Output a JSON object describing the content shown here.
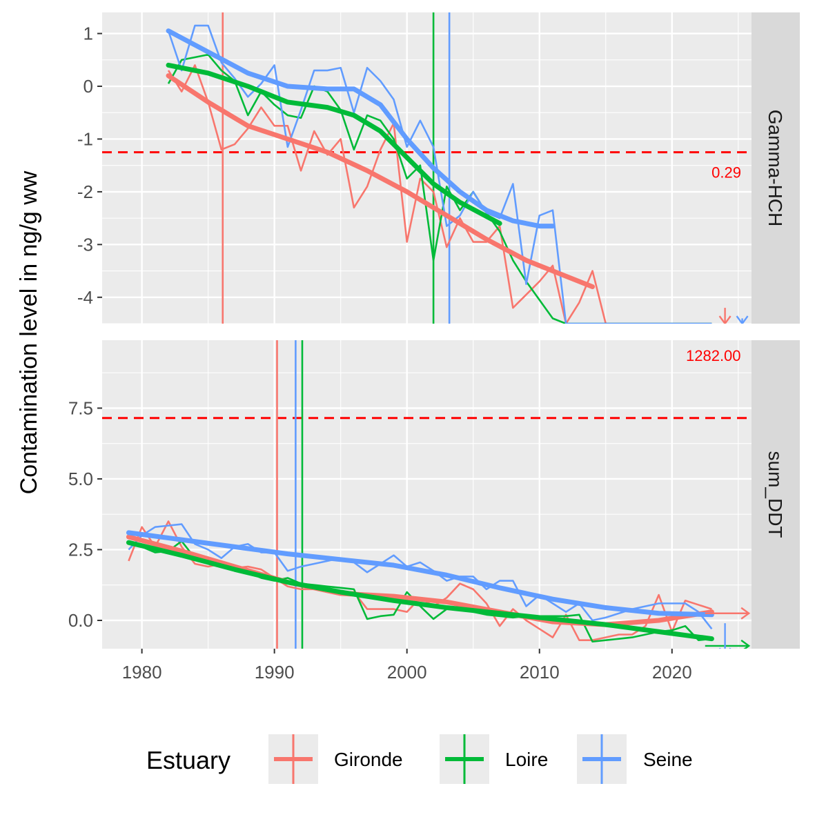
{
  "chart_data": {
    "type": "line",
    "ylabel": "Contamination level in ng/g ww",
    "xlabel": "",
    "xlim": [
      1977,
      2026
    ],
    "x_ticks": [
      1980,
      1990,
      2000,
      2010,
      2020
    ],
    "legend": {
      "title": "Estuary",
      "position": "bottom",
      "entries": [
        "Gironde",
        "Loire",
        "Seine"
      ]
    },
    "colors": {
      "Gironde": "#F8766D",
      "Loire": "#00BA38",
      "Seine": "#619CFF",
      "threshold": "#FF0000"
    },
    "panels": [
      {
        "strip": "Gamma-HCH",
        "ylim": [
          -4.5,
          1.4
        ],
        "y_ticks": [
          1,
          0,
          -1,
          -2,
          -3,
          -4
        ],
        "y_tick_labels": [
          "1",
          "0",
          "-1",
          "-2",
          "-3",
          "-4"
        ],
        "threshold": {
          "y": -1.25,
          "label": "0.29"
        },
        "vlines": {
          "Gironde": 1986.1,
          "Loire": 2002.0,
          "Seine": 2003.2
        },
        "series": [
          {
            "name": "Gironde",
            "x": [
              1982,
              1983,
              1984,
              1985,
              1986,
              1987,
              1988,
              1989,
              1990,
              1991,
              1992,
              1993,
              1994,
              1995,
              1996,
              1997,
              1998,
              1999,
              2000,
              2001,
              2002,
              2003,
              2004,
              2005,
              2006,
              2007,
              2008,
              2009,
              2010,
              2011,
              2012,
              2013,
              2014,
              2015,
              2016,
              2017,
              2018,
              2019,
              2020,
              2021,
              2022,
              2023
            ],
            "y": [
              0.3,
              -0.1,
              0.4,
              -0.3,
              -1.2,
              -1.1,
              -0.8,
              -0.4,
              -0.75,
              -0.75,
              -1.6,
              -0.85,
              -1.3,
              -1.0,
              -2.3,
              -1.9,
              -1.2,
              -0.7,
              -2.95,
              -1.75,
              -2.0,
              -3.05,
              -2.5,
              -2.95,
              -2.95,
              -2.65,
              -4.2,
              -3.95,
              -3.7,
              -3.4,
              -4.5,
              -4.1,
              -3.5,
              -4.5,
              -4.5,
              -4.5,
              -4.5,
              -4.5,
              -4.5,
              -4.5,
              -4.5,
              -4.5
            ],
            "smooth_x": [
              1982,
              1985,
              1988,
              1991,
              1994,
              1997,
              2000,
              2003,
              2006,
              2009,
              2012,
              2014
            ],
            "smooth_y": [
              0.2,
              -0.3,
              -0.75,
              -1.0,
              -1.25,
              -1.6,
              -2.0,
              -2.45,
              -2.9,
              -3.3,
              -3.6,
              -3.8
            ]
          },
          {
            "name": "Loire",
            "x": [
              1982,
              1983,
              1984,
              1985,
              1986,
              1987,
              1988,
              1989,
              1990,
              1991,
              1992,
              1993,
              1994,
              1995,
              1996,
              1997,
              1998,
              1999,
              2000,
              2001,
              2002,
              2003,
              2004,
              2005,
              2006,
              2007,
              2008,
              2009,
              2010,
              2011,
              2012,
              2013,
              2014,
              2015,
              2016,
              2017,
              2018,
              2019,
              2020,
              2021,
              2022,
              2023
            ],
            "y": [
              0.05,
              0.5,
              0.55,
              0.6,
              0.3,
              0.1,
              -0.55,
              -0.1,
              -0.35,
              -0.55,
              -0.6,
              0.0,
              -0.1,
              -0.45,
              -1.2,
              -0.55,
              -0.65,
              -1.0,
              -1.75,
              -1.5,
              -3.3,
              -1.9,
              -2.35,
              -2.0,
              -2.4,
              -2.75,
              -3.3,
              -3.7,
              -4.05,
              -4.4,
              -4.5,
              -4.5,
              -4.5,
              -4.5,
              -4.5,
              -4.5,
              -4.5,
              -4.5,
              -4.5,
              -4.5,
              -4.5,
              -4.5
            ],
            "smooth_x": [
              1982,
              1985,
              1988,
              1991,
              1994,
              1996,
              1998,
              2000,
              2002,
              2004,
              2007
            ],
            "smooth_y": [
              0.4,
              0.25,
              0.0,
              -0.3,
              -0.4,
              -0.55,
              -0.85,
              -1.35,
              -1.85,
              -2.2,
              -2.6
            ]
          },
          {
            "name": "Seine",
            "x": [
              1982,
              1983,
              1984,
              1985,
              1986,
              1987,
              1988,
              1989,
              1990,
              1991,
              1992,
              1993,
              1994,
              1995,
              1996,
              1997,
              1998,
              1999,
              2000,
              2001,
              2002,
              2003,
              2004,
              2005,
              2006,
              2007,
              2008,
              2009,
              2010,
              2011,
              2012,
              2013,
              2014,
              2015,
              2016,
              2017,
              2018,
              2019,
              2020,
              2021,
              2022,
              2023
            ],
            "y": [
              1.05,
              0.3,
              1.15,
              1.15,
              0.45,
              0.15,
              -0.2,
              0.05,
              0.4,
              -1.15,
              -0.45,
              0.3,
              0.3,
              0.35,
              -0.5,
              0.35,
              0.1,
              -0.25,
              -1.15,
              -0.65,
              -1.15,
              -2.65,
              -2.45,
              -2.0,
              -2.4,
              -2.5,
              -1.85,
              -3.75,
              -2.45,
              -2.35,
              -4.5,
              -4.5,
              -4.5,
              -4.5,
              -4.5,
              -4.5,
              -4.5,
              -4.5,
              -4.5,
              -4.5,
              -4.5,
              -4.5
            ],
            "smooth_x": [
              1982,
              1985,
              1988,
              1991,
              1994,
              1996,
              1998,
              2000,
              2002,
              2004,
              2006,
              2008,
              2010,
              2011
            ],
            "smooth_y": [
              1.05,
              0.65,
              0.25,
              0.0,
              -0.05,
              -0.05,
              -0.35,
              -1.0,
              -1.55,
              -2.0,
              -2.35,
              -2.55,
              -2.65,
              -2.65
            ]
          }
        ],
        "arrows": [
          {
            "series": "Gironde",
            "x": 2024,
            "y_from": -4.2,
            "y_to": -4.5,
            "direction": "down"
          },
          {
            "series": "Seine",
            "x": 2025.3,
            "y_from": -4.4,
            "y_to": -4.5,
            "direction": "down"
          }
        ]
      },
      {
        "strip": "sum_DDT",
        "ylim": [
          -1.0,
          9.9
        ],
        "y_ticks": [
          7.5,
          5.0,
          2.5,
          0.0
        ],
        "y_tick_labels": [
          "7.5",
          "5.0",
          "2.5",
          "0.0"
        ],
        "threshold": {
          "y": 7.15,
          "label": "1282.00"
        },
        "vlines": {
          "Gironde": 1990.2,
          "Seine": 1991.6,
          "Loire": 1992.1
        },
        "series": [
          {
            "name": "Gironde",
            "x": [
              1979,
              1980,
              1981,
              1982,
              1983,
              1984,
              1985,
              1986,
              1987,
              1988,
              1989,
              1990,
              1991,
              1992,
              1993,
              1994,
              1995,
              1996,
              1997,
              1998,
              1999,
              2000,
              2001,
              2002,
              2003,
              2004,
              2005,
              2006,
              2007,
              2008,
              2009,
              2010,
              2011,
              2012,
              2013,
              2014,
              2015,
              2016,
              2017,
              2018,
              2019,
              2020,
              2021,
              2022,
              2023
            ],
            "y": [
              2.1,
              3.3,
              2.6,
              3.5,
              2.6,
              2.0,
              1.9,
              2.0,
              1.85,
              1.9,
              1.8,
              1.5,
              1.2,
              1.1,
              1.1,
              1.0,
              1.0,
              1.0,
              0.4,
              0.4,
              0.4,
              0.3,
              0.8,
              0.5,
              0.8,
              1.3,
              1.1,
              0.6,
              -0.2,
              0.4,
              0.0,
              -0.3,
              -0.6,
              0.2,
              -0.7,
              -0.7,
              -0.6,
              -0.5,
              -0.5,
              -0.2,
              0.9,
              -0.4,
              0.7,
              0.55,
              0.4
            ],
            "smooth_x": [
              1979,
              1983,
              1987,
              1991,
              1995,
              1999,
              2003,
              2007,
              2011,
              2015,
              2019,
              2023
            ],
            "smooth_y": [
              2.95,
              2.45,
              1.9,
              1.35,
              0.95,
              0.85,
              0.65,
              0.3,
              -0.05,
              -0.15,
              0.0,
              0.3
            ]
          },
          {
            "name": "Loire",
            "x": [
              1979,
              1980,
              1981,
              1982,
              1983,
              1984,
              1985,
              1986,
              1987,
              1988,
              1989,
              1990,
              1991,
              1992,
              1993,
              1994,
              1995,
              1996,
              1997,
              1998,
              1999,
              2000,
              2001,
              2002,
              2003,
              2004,
              2005,
              2006,
              2007,
              2008,
              2009,
              2010,
              2011,
              2012,
              2013,
              2014,
              2015,
              2016,
              2017,
              2018,
              2019,
              2020,
              2021,
              2022,
              2023
            ],
            "y": [
              2.8,
              2.6,
              2.4,
              2.45,
              2.8,
              2.2,
              2.0,
              1.9,
              1.8,
              1.7,
              1.5,
              1.4,
              1.5,
              1.3,
              1.25,
              1.2,
              1.15,
              1.1,
              0.05,
              0.15,
              0.2,
              1.0,
              0.5,
              0.05,
              0.4,
              0.5,
              0.3,
              0.2,
              0.15,
              0.1,
              0.15,
              0.15,
              0.15,
              0.15,
              0.2,
              -0.75,
              -0.7,
              -0.65,
              -0.6,
              -0.5,
              -0.4,
              -0.35,
              -0.2,
              -0.7,
              -0.65
            ],
            "smooth_x": [
              1979,
              1983,
              1987,
              1991,
              1995,
              1999,
              2003,
              2007,
              2011,
              2015,
              2019,
              2023
            ],
            "smooth_y": [
              2.75,
              2.3,
              1.8,
              1.35,
              1.0,
              0.7,
              0.45,
              0.25,
              0.05,
              -0.15,
              -0.4,
              -0.65
            ]
          },
          {
            "name": "Seine",
            "x": [
              1979,
              1980,
              1981,
              1982,
              1983,
              1984,
              1985,
              1986,
              1987,
              1988,
              1989,
              1990,
              1991,
              1992,
              1993,
              1994,
              1995,
              1996,
              1997,
              1998,
              1999,
              2000,
              2001,
              2002,
              2003,
              2004,
              2005,
              2006,
              2007,
              2008,
              2009,
              2010,
              2011,
              2012,
              2013,
              2014,
              2015,
              2016,
              2017,
              2018,
              2019,
              2020,
              2021,
              2022,
              2023
            ],
            "y": [
              2.5,
              3.0,
              3.3,
              3.35,
              3.4,
              2.7,
              2.5,
              2.2,
              2.6,
              2.7,
              2.4,
              2.4,
              1.75,
              1.9,
              2.0,
              2.1,
              2.2,
              2.05,
              1.7,
              2.0,
              2.3,
              1.9,
              2.05,
              1.75,
              1.4,
              1.55,
              1.55,
              1.1,
              1.4,
              1.4,
              0.5,
              0.9,
              0.6,
              0.3,
              0.6,
              0.0,
              0.1,
              0.25,
              0.4,
              0.5,
              0.6,
              0.6,
              0.6,
              0.3,
              -0.3
            ],
            "smooth_x": [
              1979,
              1983,
              1987,
              1991,
              1995,
              1999,
              2003,
              2007,
              2011,
              2015,
              2019,
              2023
            ],
            "smooth_y": [
              3.1,
              2.85,
              2.6,
              2.35,
              2.15,
              1.95,
              1.6,
              1.15,
              0.75,
              0.45,
              0.25,
              0.2
            ]
          }
        ],
        "arrows": [
          {
            "series": "Gironde",
            "x_from": 2022.5,
            "x_to": 2025.8,
            "y": 0.25,
            "direction": "right"
          },
          {
            "series": "Loire",
            "x_from": 2022.5,
            "x_to": 2025.8,
            "y": -0.9,
            "direction": "right"
          },
          {
            "series": "Seine",
            "x": 2024,
            "y_from": -0.1,
            "y_to": -1.25,
            "direction": "down"
          }
        ]
      }
    ]
  }
}
